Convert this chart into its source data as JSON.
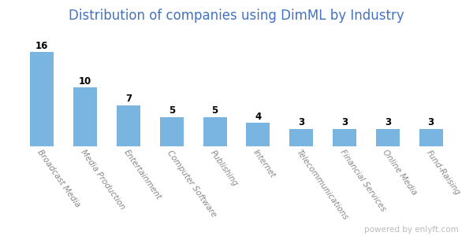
{
  "title": "Distribution of companies using DimML by Industry",
  "categories": [
    "Broadcast Media",
    "Media Production",
    "Entertainment",
    "Computer Software",
    "Publishing",
    "Internet",
    "Telecommunications",
    "Financial Services",
    "Online Media",
    "Fund-Raising"
  ],
  "values": [
    16,
    10,
    7,
    5,
    5,
    4,
    3,
    3,
    3,
    3
  ],
  "bar_color": "#7ab4e0",
  "title_color": "#4472c4",
  "value_fontsize": 8.5,
  "label_fontsize": 7.5,
  "title_fontsize": 12,
  "ylim": [
    0,
    20
  ],
  "background_color": "#ffffff",
  "watermark": "powered by enlyft.com",
  "watermark_color": "#bbbbbb",
  "label_color": "#888888",
  "bar_width": 0.55
}
